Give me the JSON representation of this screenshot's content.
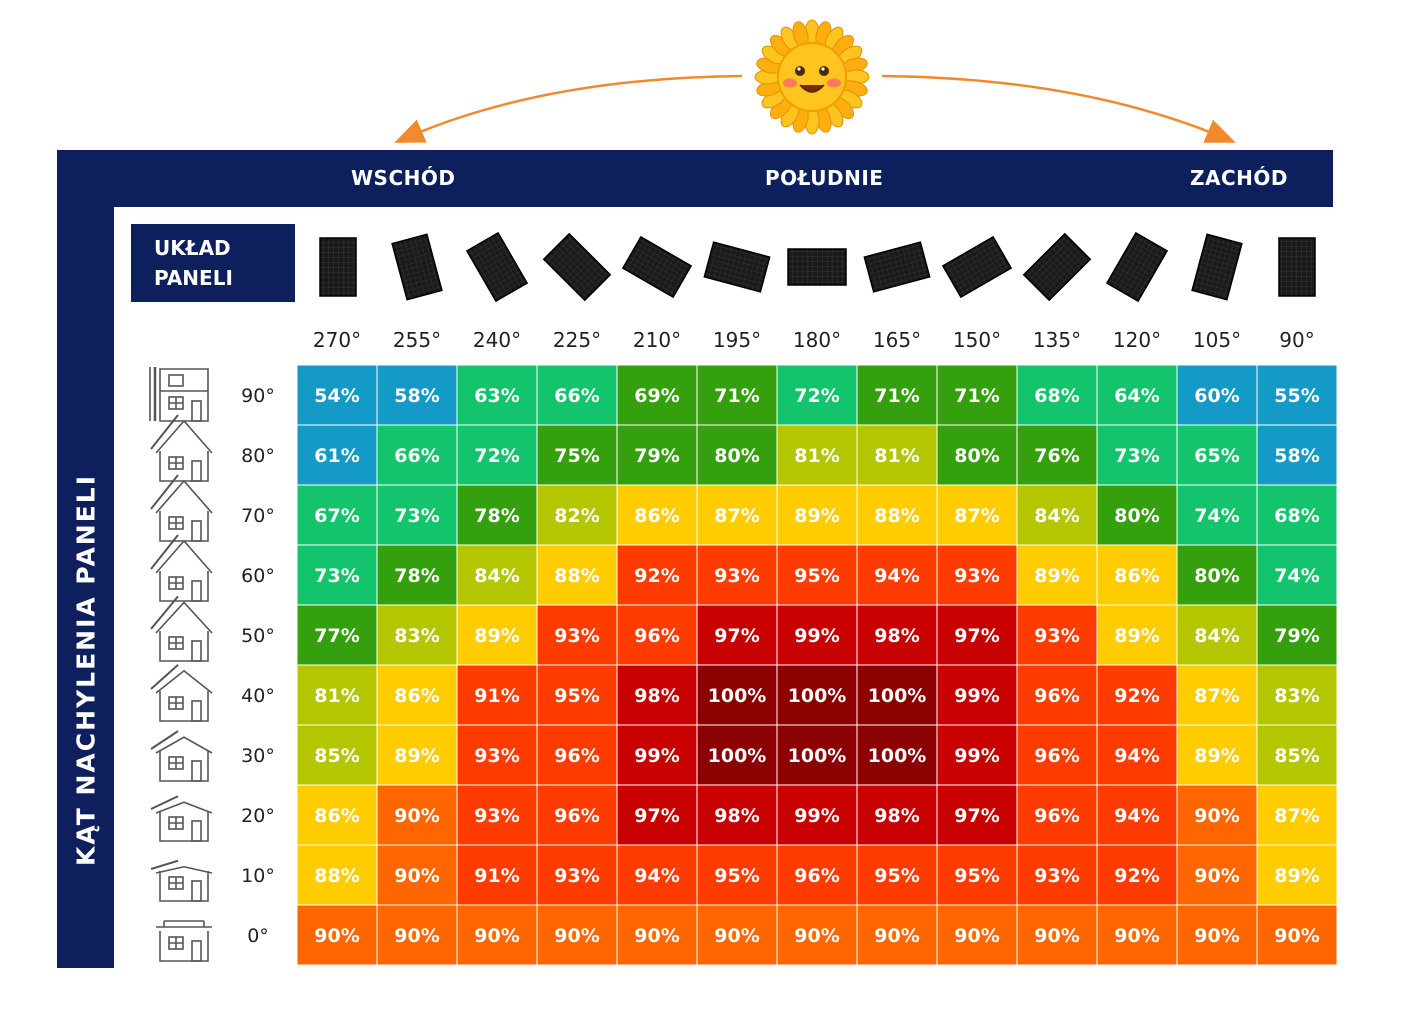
{
  "directions": {
    "east": "WSCHÓD",
    "south": "POŁUDNIE",
    "west": "ZACHÓD"
  },
  "panel_layout_label": {
    "line1": "UKŁAD",
    "line2": "PANELI"
  },
  "tilt_axis_label": "KĄT  NACHYLENIA  PANELI",
  "colors": {
    "navy": "#0d1f5c",
    "arrow": "#f08a2c",
    "sun_yellow": "#ffc41f",
    "sun_petal": "#ffae10"
  },
  "icons": [
    "sun-icon",
    "solar-panel-icon",
    "house-icon"
  ],
  "chart_data": {
    "type": "heatmap",
    "x_labels": [
      "270°",
      "255°",
      "240°",
      "225°",
      "210°",
      "195°",
      "180°",
      "165°",
      "150°",
      "135°",
      "120°",
      "105°",
      "90°"
    ],
    "y_labels": [
      "90°",
      "80°",
      "70°",
      "60°",
      "50°",
      "40°",
      "30°",
      "20°",
      "10°",
      "0°"
    ],
    "values": [
      [
        54,
        58,
        63,
        66,
        69,
        71,
        72,
        71,
        71,
        68,
        64,
        60,
        55
      ],
      [
        61,
        66,
        72,
        75,
        79,
        80,
        81,
        81,
        80,
        76,
        73,
        65,
        58
      ],
      [
        67,
        73,
        78,
        82,
        86,
        87,
        89,
        88,
        87,
        84,
        80,
        74,
        68
      ],
      [
        73,
        78,
        84,
        88,
        92,
        93,
        95,
        94,
        93,
        89,
        86,
        80,
        74
      ],
      [
        77,
        83,
        89,
        93,
        96,
        97,
        99,
        98,
        97,
        93,
        89,
        84,
        79
      ],
      [
        81,
        86,
        91,
        95,
        98,
        100,
        100,
        100,
        99,
        96,
        92,
        87,
        83
      ],
      [
        85,
        89,
        93,
        96,
        99,
        100,
        100,
        100,
        99,
        96,
        94,
        89,
        85
      ],
      [
        86,
        90,
        93,
        96,
        97,
        98,
        99,
        98,
        97,
        96,
        94,
        90,
        87
      ],
      [
        88,
        90,
        91,
        93,
        94,
        95,
        96,
        95,
        95,
        93,
        92,
        90,
        89
      ],
      [
        90,
        90,
        90,
        90,
        90,
        90,
        90,
        90,
        90,
        90,
        90,
        90,
        90
      ]
    ],
    "unit": "%",
    "color_scale": {
      "54": "#1599c6",
      "55": "#1599c6",
      "58": "#1599c6",
      "60": "#1599c6",
      "61": "#1599c6",
      "63": "#14c46c",
      "64": "#14c46c",
      "65": "#14c46c",
      "66": "#14c46c",
      "67": "#14c46c",
      "68": "#14c46c",
      "72": "#14c46c",
      "73": "#14c46c",
      "74": "#14c46c",
      "69": "#34a00e",
      "71": "#34a00e",
      "75": "#34a00e",
      "76": "#34a00e",
      "77": "#34a00e",
      "78": "#34a00e",
      "79": "#34a00e",
      "80": "#34a00e",
      "81": "#b4c600",
      "82": "#b4c600",
      "83": "#b4c600",
      "84": "#b4c600",
      "85": "#b4c600",
      "86": "#ffcc00",
      "87": "#ffcc00",
      "88": "#ffcc00",
      "89": "#ffcc00",
      "90": "#ff6600",
      "91": "#ff3b00",
      "92": "#ff3b00",
      "93": "#ff3b00",
      "94": "#ff3b00",
      "95": "#ff3b00",
      "96": "#ff3b00",
      "97": "#c80000",
      "98": "#c80000",
      "99": "#c80000",
      "100": "#8b0000"
    }
  }
}
